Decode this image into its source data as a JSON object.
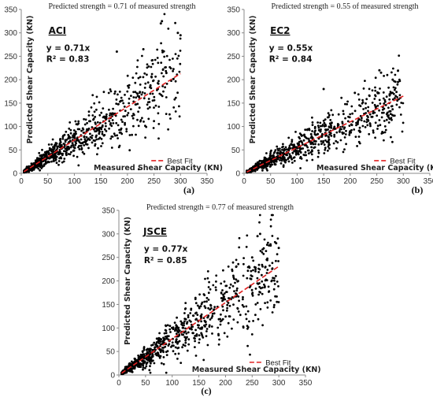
{
  "figure": {
    "panel_letters": [
      "(a)",
      "(b)",
      "(c)"
    ]
  },
  "colors": {
    "point": "#000000",
    "fit": "#e02020",
    "axis": "#888888"
  },
  "chart_data": [
    {
      "type": "scatter",
      "code": "ACI",
      "title": "Predicted strength = 0.71 of measured strength",
      "xlabel": "Measured Shear Capacity (KN)",
      "ylabel": "Predicted Shear Capacity (KN)",
      "xlim": [
        0,
        350
      ],
      "ylim": [
        0,
        350
      ],
      "xticks": [
        0,
        50,
        100,
        150,
        200,
        250,
        300,
        350
      ],
      "yticks": [
        0,
        50,
        100,
        150,
        200,
        250,
        300,
        350
      ],
      "equation": "y = 0.71x",
      "r2": "R² = 0.83",
      "fit_slope": 0.71,
      "fit_range": [
        5,
        300
      ],
      "legend": "Best Fit",
      "series": [
        {
          "n_points": 900,
          "scatter_spread": 0.27,
          "outliers": [
            [
              265,
              325
            ],
            [
              263,
              320
            ],
            [
              295,
              300
            ],
            [
              300,
              295
            ],
            [
              180,
              260
            ],
            [
              230,
              265
            ]
          ]
        }
      ]
    },
    {
      "type": "scatter",
      "code": "EC2",
      "title": "Predicted strength = 0.55 of measured strength",
      "xlabel": "Measured Shear Capacity (KN)",
      "ylabel": "Predicted Shear Capacity (KN)",
      "xlim": [
        0,
        350
      ],
      "ylim": [
        0,
        350
      ],
      "xticks": [
        0,
        50,
        100,
        150,
        200,
        250,
        300,
        350
      ],
      "yticks": [
        0,
        50,
        100,
        150,
        200,
        250,
        300,
        350
      ],
      "equation": "y = 0.55x",
      "r2": "R² = 0.84",
      "fit_slope": 0.55,
      "fit_range": [
        5,
        300
      ],
      "legend": "Best Fit",
      "series": [
        {
          "n_points": 900,
          "scatter_spread": 0.27,
          "outliers": [
            [
              255,
              220
            ],
            [
              258,
              215
            ],
            [
              290,
              195
            ],
            [
              280,
              200
            ],
            [
              150,
              180
            ]
          ]
        }
      ]
    },
    {
      "type": "scatter",
      "code": "JSCE",
      "title": "Predicted strength = 0.77 of measured strength",
      "xlabel": "Measured Shear Capacity (KN)",
      "ylabel": "Predicted Shear Capacity (KN)",
      "xlim": [
        0,
        350
      ],
      "ylim": [
        0,
        350
      ],
      "xticks": [
        0,
        50,
        100,
        150,
        200,
        250,
        300,
        350
      ],
      "yticks": [
        0,
        50,
        100,
        150,
        200,
        250,
        300,
        350
      ],
      "equation": "y = 0.77x",
      "r2": "R² = 0.85",
      "fit_slope": 0.77,
      "fit_range": [
        5,
        300
      ],
      "legend": "Best Fit",
      "series": [
        {
          "n_points": 900,
          "scatter_spread": 0.27,
          "outliers": [
            [
              265,
              300
            ],
            [
              260,
              295
            ],
            [
              295,
              280
            ],
            [
              300,
              270
            ],
            [
              250,
              250
            ],
            [
              275,
              230
            ]
          ]
        }
      ]
    }
  ]
}
